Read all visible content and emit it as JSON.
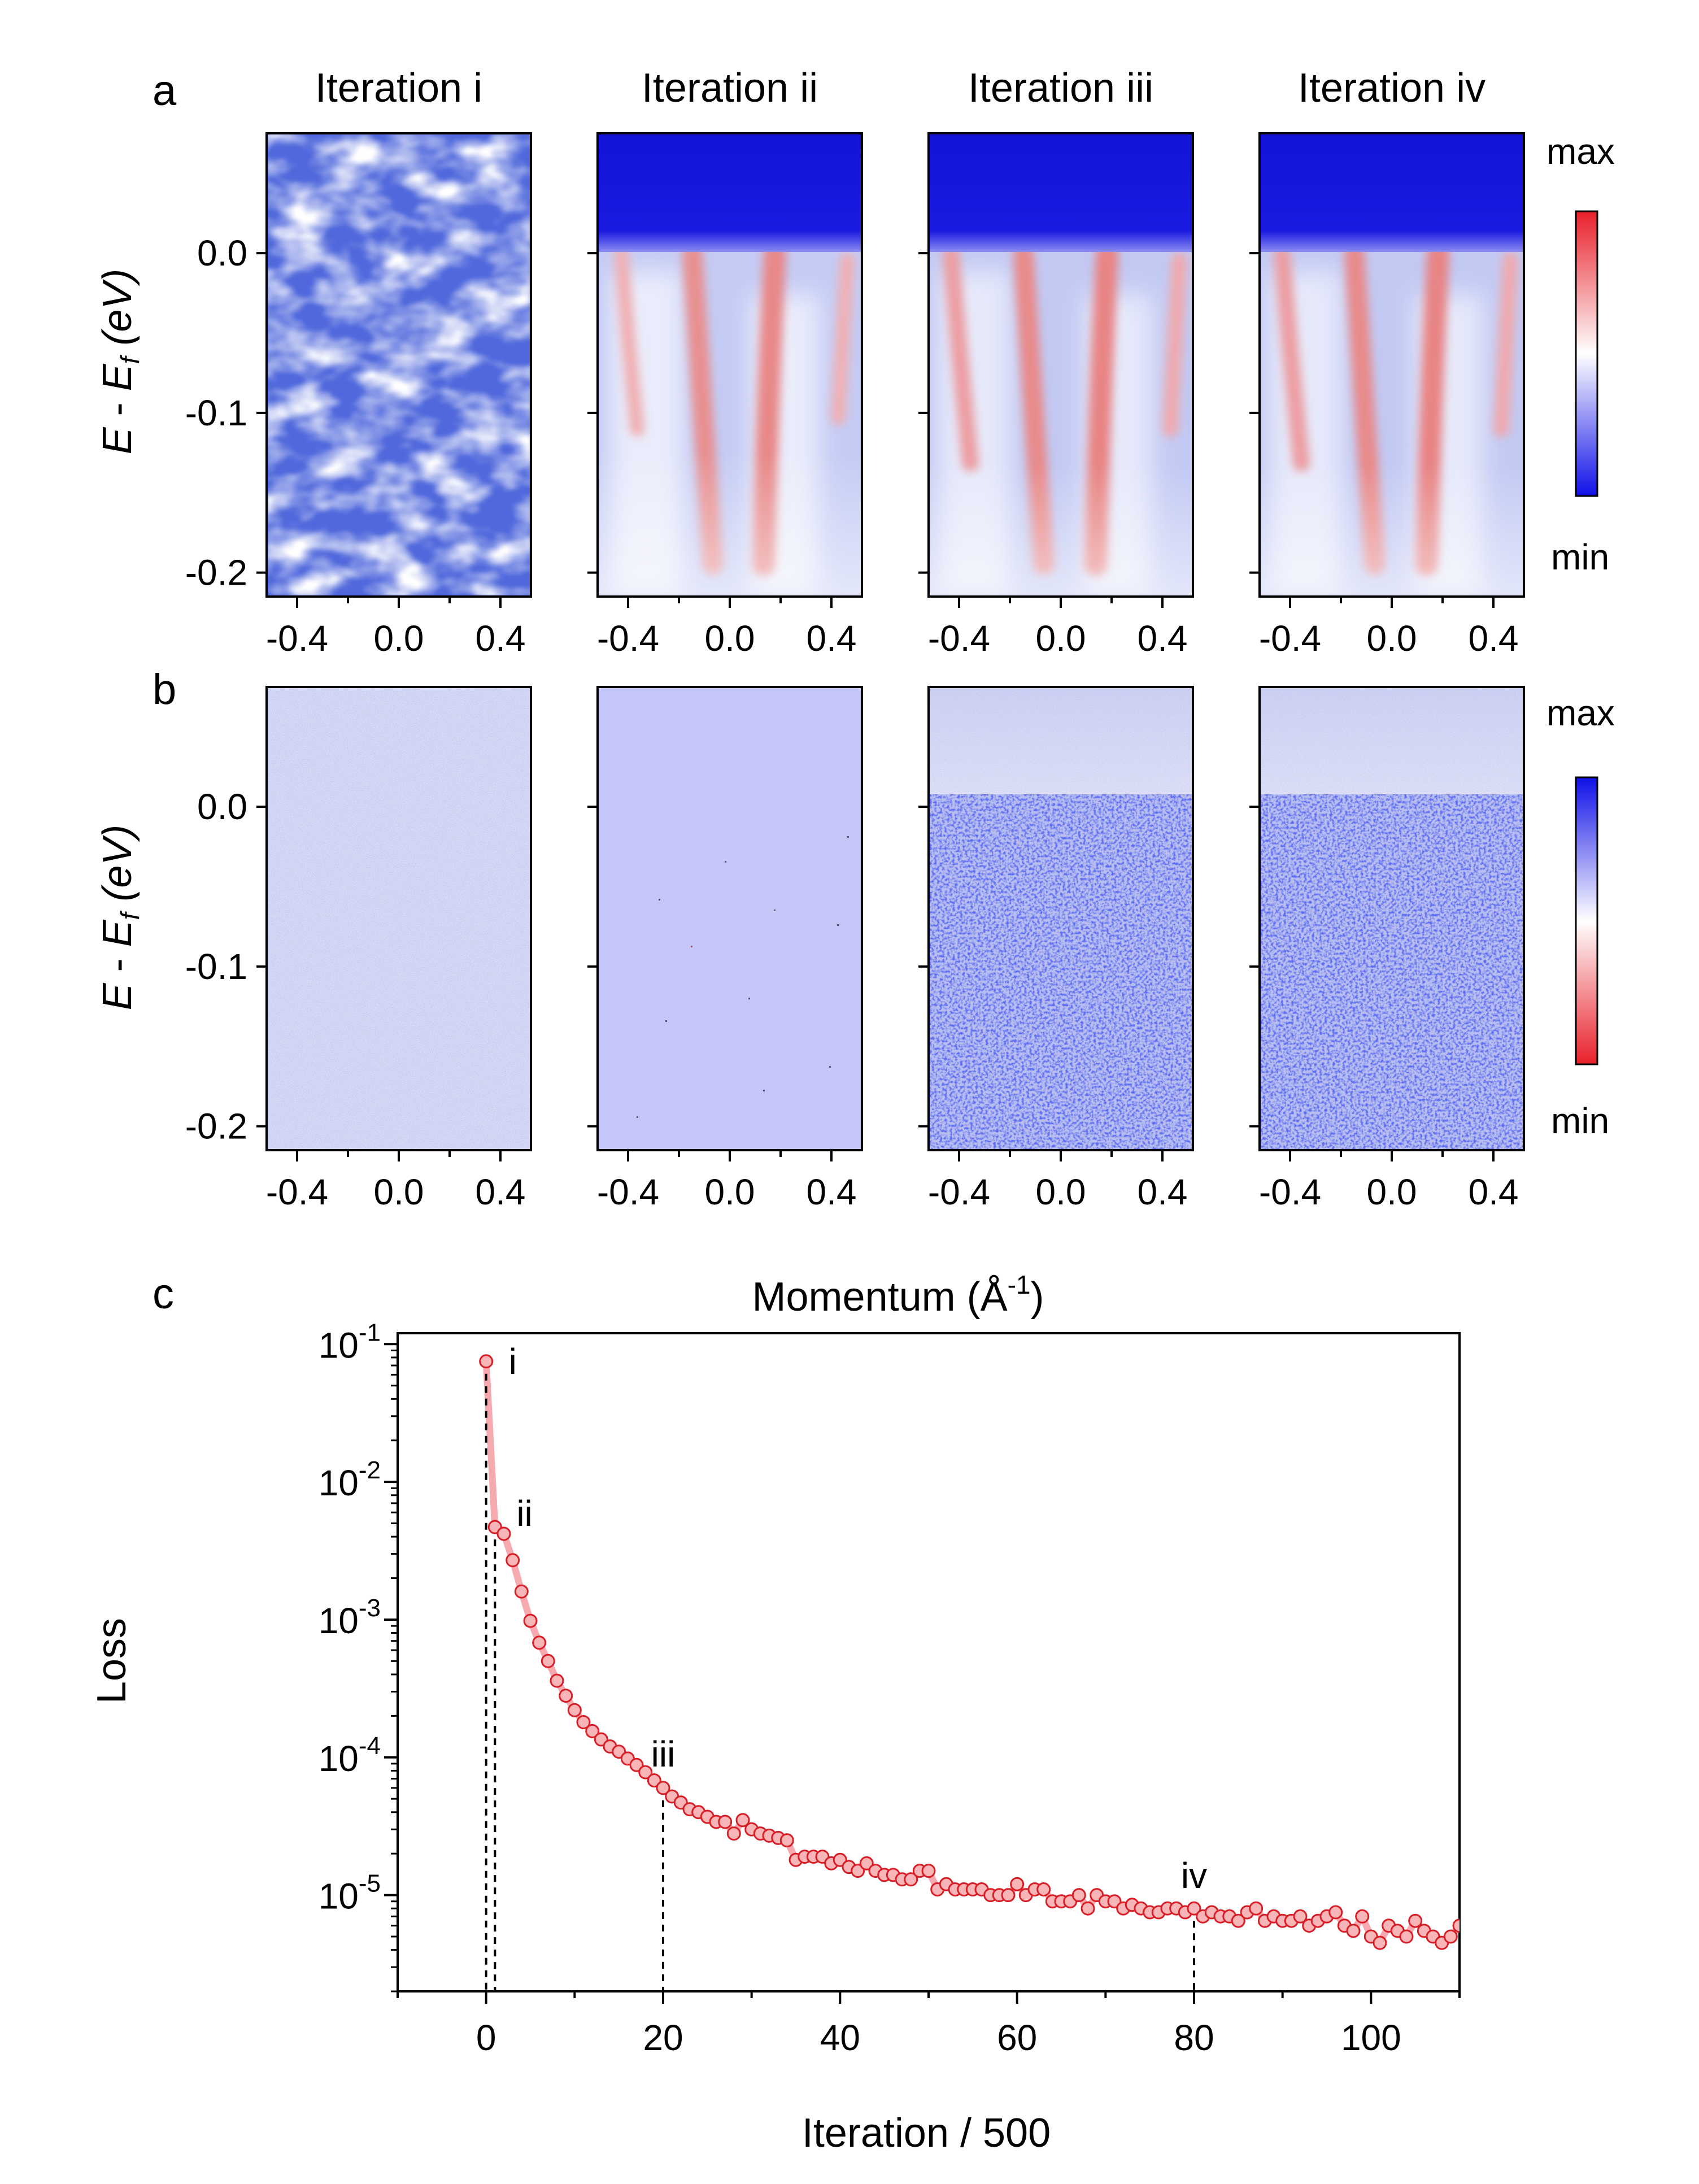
{
  "panel_labels": {
    "a": "a",
    "b": "b",
    "c": "c"
  },
  "iteration_titles": [
    "Iteration i",
    "Iteration ii",
    "Iteration iii",
    "Iteration iv"
  ],
  "energy_axis": {
    "label_E": "E",
    "label_dash": " - ",
    "label_Ef": "E",
    "label_Ef_sub": "f",
    "label_unit": " (eV)",
    "ticks": [
      "0.0",
      "-0.1",
      "-0.2"
    ],
    "tick_values": [
      0.0,
      -0.1,
      -0.2
    ],
    "range": [
      -0.215,
      0.075
    ]
  },
  "momentum_axis": {
    "ticks": [
      "-0.4",
      "0.0",
      "0.4"
    ],
    "tick_values": [
      -0.4,
      0.0,
      0.4
    ],
    "range": [
      -0.52,
      0.52
    ]
  },
  "momentum_label": {
    "text": "Momentum (Å",
    "sup": "-1",
    "close": ")"
  },
  "colorbar_a": {
    "max": "max",
    "min": "min",
    "top_color": "#e8202a",
    "mid_color": "#ffffff",
    "bottom_color": "#1010e8"
  },
  "colorbar_b": {
    "max": "max",
    "min": "min",
    "top_color": "#1010e8",
    "mid_color": "#ffffff",
    "bottom_color": "#e8202a"
  },
  "colors": {
    "red": "#e8202a",
    "blue": "#1010e8",
    "marker_fill": "#f7b5b8",
    "marker_edge": "#d81f27",
    "line": "#f6a9ae"
  },
  "chart_data": {
    "type": "scatter",
    "xlabel": "Iteration / 500",
    "ylabel": "Loss",
    "yscale": "log",
    "xlim": [
      -10,
      110
    ],
    "ylim": [
      2e-06,
      0.12
    ],
    "x_ticks": [
      "0",
      "20",
      "40",
      "60",
      "80",
      "100"
    ],
    "x_tick_values": [
      0,
      20,
      40,
      60,
      80,
      100
    ],
    "y_ticks": [
      {
        "base": "10",
        "exp": "-1",
        "value": 0.1
      },
      {
        "base": "10",
        "exp": "-2",
        "value": 0.01
      },
      {
        "base": "10",
        "exp": "-3",
        "value": 0.001
      },
      {
        "base": "10",
        "exp": "-4",
        "value": 0.0001
      },
      {
        "base": "10",
        "exp": "-5",
        "value": 1e-05
      }
    ],
    "annotations": [
      {
        "label": "i",
        "x": 0
      },
      {
        "label": "ii",
        "x": 1
      },
      {
        "label": "iii",
        "x": 20
      },
      {
        "label": "iv",
        "x": 80
      }
    ],
    "series": [
      {
        "x": [
          0,
          1,
          2,
          3,
          4,
          5,
          6,
          7,
          8,
          9,
          10,
          11,
          12,
          13,
          14,
          15,
          16,
          17,
          18,
          19,
          20,
          21,
          22,
          23,
          24,
          25,
          26,
          27,
          28,
          29,
          30,
          31,
          32,
          33,
          34,
          35,
          36,
          37,
          38,
          39,
          40,
          41,
          42,
          43,
          44,
          45,
          46,
          47,
          48,
          49,
          50,
          51,
          52,
          53,
          54,
          55,
          56,
          57,
          58,
          59,
          60,
          61,
          62,
          63,
          64,
          65,
          66,
          67,
          68,
          69,
          70,
          71,
          72,
          73,
          74,
          75,
          76,
          77,
          78,
          79,
          80,
          81,
          82,
          83,
          84,
          85,
          86,
          87,
          88,
          89,
          90,
          91,
          92,
          93,
          94,
          95,
          96,
          97,
          98,
          99,
          100,
          101,
          102,
          103,
          104,
          105,
          106,
          107,
          108,
          109,
          110
        ],
        "y": [
          0.075,
          0.0047,
          0.0042,
          0.0027,
          0.0016,
          0.00098,
          0.00068,
          0.0005,
          0.00036,
          0.00028,
          0.00022,
          0.00018,
          0.000155,
          0.000135,
          0.00012,
          0.00011,
          9.8e-05,
          8.8e-05,
          7.8e-05,
          6.8e-05,
          6e-05,
          5.2e-05,
          4.7e-05,
          4.2e-05,
          4e-05,
          3.7e-05,
          3.4e-05,
          3.4e-05,
          2.8e-05,
          3.5e-05,
          3e-05,
          2.8e-05,
          2.7e-05,
          2.6e-05,
          2.5e-05,
          1.8e-05,
          1.9e-05,
          1.9e-05,
          1.9e-05,
          1.7e-05,
          1.8e-05,
          1.6e-05,
          1.5e-05,
          1.7e-05,
          1.5e-05,
          1.4e-05,
          1.4e-05,
          1.3e-05,
          1.3e-05,
          1.5e-05,
          1.5e-05,
          1.1e-05,
          1.2e-05,
          1.1e-05,
          1.1e-05,
          1.1e-05,
          1.1e-05,
          1e-05,
          1e-05,
          1e-05,
          1.2e-05,
          1e-05,
          1.1e-05,
          1.1e-05,
          9e-06,
          9e-06,
          9e-06,
          1e-05,
          8e-06,
          1e-05,
          9e-06,
          9e-06,
          8e-06,
          8.5e-06,
          8e-06,
          7.5e-06,
          7.5e-06,
          8e-06,
          8e-06,
          7.5e-06,
          8e-06,
          7e-06,
          7.5e-06,
          7e-06,
          7e-06,
          6.5e-06,
          7.5e-06,
          8e-06,
          6.5e-06,
          7e-06,
          6.5e-06,
          6.5e-06,
          7e-06,
          6e-06,
          6.5e-06,
          7e-06,
          7.5e-06,
          6e-06,
          5.5e-06,
          7e-06,
          5e-06,
          4.5e-06,
          6e-06,
          5.5e-06,
          5e-06,
          6.5e-06,
          5.5e-06,
          5e-06,
          4.5e-06,
          5e-06,
          6e-06
        ]
      }
    ]
  }
}
